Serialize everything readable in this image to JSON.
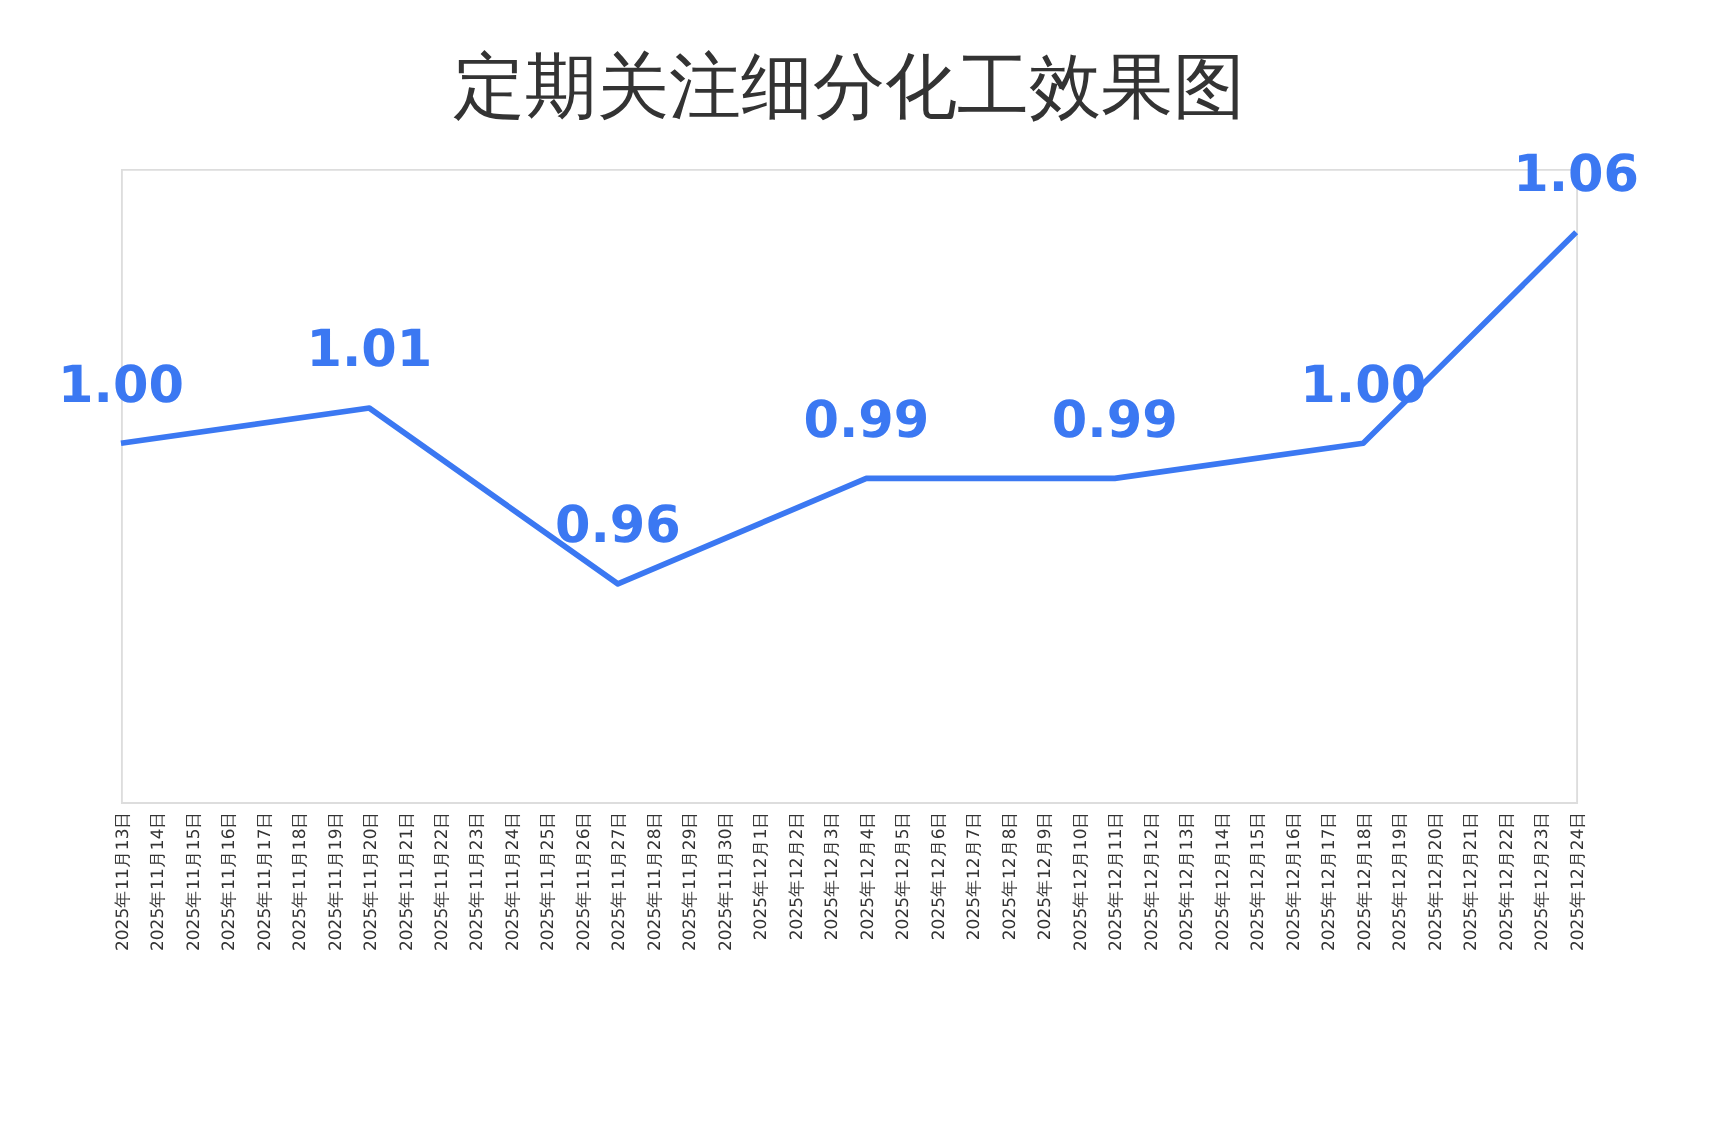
{
  "chart_data": {
    "type": "line",
    "title": "定期关注细分化工效果图",
    "x": [
      "2025-11-13",
      "2025-11-20",
      "2025-11-27",
      "2025-12-04",
      "2025-12-11",
      "2025-12-18",
      "2025-12-24"
    ],
    "series": [
      {
        "color": "#3b78f2",
        "values": [
          1.0,
          1.01,
          0.96,
          0.99,
          0.99,
          1.0,
          1.06
        ],
        "value_labels": [
          "1.00",
          "1.01",
          "0.96",
          "0.99",
          "0.99",
          "1.00",
          "1.06"
        ]
      }
    ],
    "marker": "none",
    "grid": false,
    "legend": false,
    "tick_labels": "x",
    "xlim": [
      "2025-11-13",
      "2025-12-24"
    ],
    "xticks": [
      {
        "value": "2025-11-13",
        "label": "2025年11月13日"
      },
      {
        "value": "2025-11-14",
        "label": "2025年11月14日"
      },
      {
        "value": "2025-11-15",
        "label": "2025年11月15日"
      },
      {
        "value": "2025-11-16",
        "label": "2025年11月16日"
      },
      {
        "value": "2025-11-17",
        "label": "2025年11月17日"
      },
      {
        "value": "2025-11-18",
        "label": "2025年11月18日"
      },
      {
        "value": "2025-11-19",
        "label": "2025年11月19日"
      },
      {
        "value": "2025-11-20",
        "label": "2025年11月20日"
      },
      {
        "value": "2025-11-21",
        "label": "2025年11月21日"
      },
      {
        "value": "2025-11-22",
        "label": "2025年11月22日"
      },
      {
        "value": "2025-11-23",
        "label": "2025年11月23日"
      },
      {
        "value": "2025-11-24",
        "label": "2025年11月24日"
      },
      {
        "value": "2025-11-25",
        "label": "2025年11月25日"
      },
      {
        "value": "2025-11-26",
        "label": "2025年11月26日"
      },
      {
        "value": "2025-11-27",
        "label": "2025年11月27日"
      },
      {
        "value": "2025-11-28",
        "label": "2025年11月28日"
      },
      {
        "value": "2025-11-29",
        "label": "2025年11月29日"
      },
      {
        "value": "2025-11-30",
        "label": "2025年11月30日"
      },
      {
        "value": "2025-12-01",
        "label": "2025年12月1日"
      },
      {
        "value": "2025-12-02",
        "label": "2025年12月2日"
      },
      {
        "value": "2025-12-03",
        "label": "2025年12月3日"
      },
      {
        "value": "2025-12-04",
        "label": "2025年12月4日"
      },
      {
        "value": "2025-12-05",
        "label": "2025年12月5日"
      },
      {
        "value": "2025-12-06",
        "label": "2025年12月6日"
      },
      {
        "value": "2025-12-07",
        "label": "2025年12月7日"
      },
      {
        "value": "2025-12-08",
        "label": "2025年12月8日"
      },
      {
        "value": "2025-12-09",
        "label": "2025年12月9日"
      },
      {
        "value": "2025-12-10",
        "label": "2025年12月10日"
      },
      {
        "value": "2025-12-11",
        "label": "2025年12月11日"
      },
      {
        "value": "2025-12-12",
        "label": "2025年12月12日"
      },
      {
        "value": "2025-12-13",
        "label": "2025年12月13日"
      },
      {
        "value": "2025-12-14",
        "label": "2025年12月14日"
      },
      {
        "value": "2025-12-15",
        "label": "2025年12月15日"
      },
      {
        "value": "2025-12-16",
        "label": "2025年12月16日"
      },
      {
        "value": "2025-12-17",
        "label": "2025年12月17日"
      },
      {
        "value": "2025-12-18",
        "label": "2025年12月18日"
      },
      {
        "value": "2025-12-19",
        "label": "2025年12月19日"
      },
      {
        "value": "2025-12-20",
        "label": "2025年12月20日"
      },
      {
        "value": "2025-12-21",
        "label": "2025年12月21日"
      },
      {
        "value": "2025-12-22",
        "label": "2025年12月22日"
      },
      {
        "value": "2025-12-23",
        "label": "2025年12月23日"
      },
      {
        "value": "2025-12-24",
        "label": "2025年12月24日"
      }
    ]
  }
}
